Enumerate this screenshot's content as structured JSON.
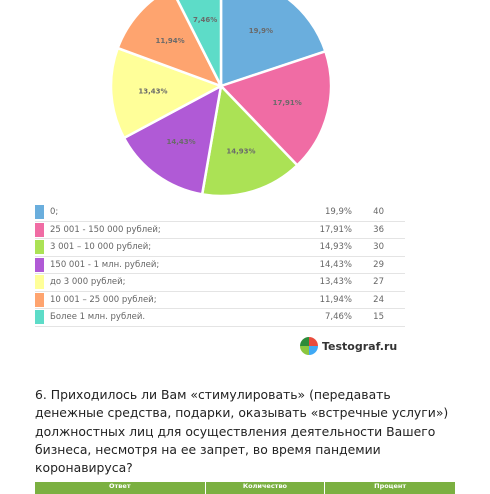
{
  "chart_data": {
    "type": "pie",
    "slices": [
      {
        "label": "0;",
        "percent_label": "19,9%",
        "percent": 19.9,
        "count": "40",
        "color": "#6aaedd"
      },
      {
        "label": "25 001 - 150 000 рублей;",
        "percent_label": "17,91%",
        "percent": 17.91,
        "count": "36",
        "color": "#f06ca4"
      },
      {
        "label": "3 001 – 10 000 рублей;",
        "percent_label": "14,93%",
        "percent": 14.93,
        "count": "30",
        "color": "#abe255"
      },
      {
        "label": "150 001 - 1 млн. рублей;",
        "percent_label": "14,43%",
        "percent": 14.43,
        "count": "29",
        "color": "#b05ad6"
      },
      {
        "label": "до 3 000 рублей;",
        "percent_label": "13,43%",
        "percent": 13.43,
        "count": "27",
        "color": "#ffff99"
      },
      {
        "label": "10 001 – 25 000 рублей;",
        "percent_label": "11,94%",
        "percent": 11.94,
        "count": "24",
        "color": "#fea46f"
      },
      {
        "label": "Более 1 млн. рублей.",
        "percent_label": "7,46%",
        "percent": 7.46,
        "count": "15",
        "color": "#5ddcc8"
      }
    ]
  },
  "brand": {
    "name": "Testograf.ru"
  },
  "question": {
    "text": "6. Приходилось ли Вам «стимулировать» (передавать денежные средства, подарки, оказывать «встречные услуги») должностных лиц для осуществления деятельности Вашего бизнеса, несмотря на ее запрет, во время пандемии коронавируса?"
  },
  "answers_table": {
    "headers": [
      "Ответ",
      "Количество",
      "Процент"
    ]
  }
}
